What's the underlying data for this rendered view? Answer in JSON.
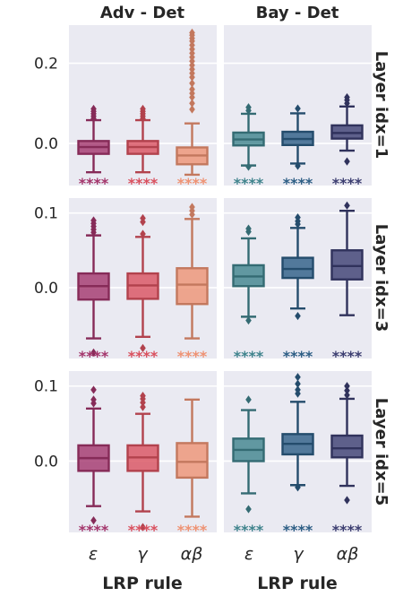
{
  "chart_data": {
    "type": "box",
    "col_titles": [
      "Adv - Det",
      "Bay - Det"
    ],
    "row_titles": [
      "Layer idx=1",
      "Layer idx=3",
      "Layer idx=5"
    ],
    "xlabel": "LRP rule",
    "categories": [
      "ε",
      "γ",
      "αβ"
    ],
    "significance_label": "****",
    "grid": true,
    "background": "#eaeaf2",
    "colors": {
      "Adv - Det": [
        "#a3356b",
        "#d9505e",
        "#ee9273"
      ],
      "Bay - Det": [
        "#3f838c",
        "#2c5d84",
        "#3b3d70"
      ]
    },
    "rows": [
      {
        "ylim": [
          -0.105,
          0.295
        ],
        "yticks": [
          0.0,
          0.2
        ],
        "ytick_labels": [
          "0.0",
          "0.2"
        ],
        "panels": [
          {
            "boxes": [
              {
                "q1": -0.026,
                "median": -0.009,
                "q3": 0.006,
                "whislo": -0.072,
                "whishi": 0.058,
                "fliers": [
                  0.062,
                  0.068,
                  0.074,
                  0.08,
                  0.086
                ]
              },
              {
                "q1": -0.026,
                "median": -0.009,
                "q3": 0.006,
                "whislo": -0.072,
                "whishi": 0.058,
                "fliers": [
                  0.062,
                  0.068,
                  0.074,
                  0.08,
                  0.086
                ]
              },
              {
                "q1": -0.052,
                "median": -0.03,
                "q3": -0.01,
                "whislo": -0.078,
                "whishi": 0.05,
                "fliers": [
                  0.085,
                  0.1,
                  0.115,
                  0.125,
                  0.135,
                  0.15,
                  0.165,
                  0.175,
                  0.185,
                  0.195,
                  0.205,
                  0.215,
                  0.225,
                  0.235,
                  0.245,
                  0.255,
                  0.262,
                  0.27,
                  0.276
                ]
              }
            ]
          },
          {
            "boxes": [
              {
                "q1": -0.005,
                "median": 0.01,
                "q3": 0.027,
                "whislo": -0.055,
                "whishi": 0.074,
                "fliers": [
                  0.082,
                  0.09,
                  -0.058
                ]
              },
              {
                "q1": -0.004,
                "median": 0.011,
                "q3": 0.029,
                "whislo": -0.05,
                "whishi": 0.075,
                "fliers": [
                  0.087,
                  -0.056
                ]
              },
              {
                "q1": 0.012,
                "median": 0.026,
                "q3": 0.045,
                "whislo": -0.018,
                "whishi": 0.092,
                "fliers": [
                  0.1,
                  0.108,
                  0.115,
                  -0.045
                ]
              }
            ]
          }
        ]
      },
      {
        "ylim": [
          -0.095,
          0.12
        ],
        "yticks": [
          0.0,
          0.1
        ],
        "ytick_labels": [
          "0.0",
          "0.1"
        ],
        "panels": [
          {
            "boxes": [
              {
                "q1": -0.016,
                "median": 0.002,
                "q3": 0.019,
                "whislo": -0.068,
                "whishi": 0.07,
                "fliers": [
                  0.074,
                  0.078,
                  0.082,
                  0.086,
                  0.09,
                  -0.087
                ]
              },
              {
                "q1": -0.015,
                "median": 0.003,
                "q3": 0.019,
                "whislo": -0.066,
                "whishi": 0.068,
                "fliers": [
                  0.072,
                  0.088,
                  0.093,
                  -0.081
                ]
              },
              {
                "q1": -0.022,
                "median": 0.004,
                "q3": 0.026,
                "whislo": -0.068,
                "whishi": 0.092,
                "fliers": [
                  0.098,
                  0.103,
                  0.108
                ]
              }
            ]
          },
          {
            "boxes": [
              {
                "q1": 0.002,
                "median": 0.015,
                "q3": 0.03,
                "whislo": -0.039,
                "whishi": 0.066,
                "fliers": [
                  0.075,
                  0.079,
                  -0.044
                ]
              },
              {
                "q1": 0.013,
                "median": 0.025,
                "q3": 0.04,
                "whislo": -0.028,
                "whishi": 0.08,
                "fliers": [
                  0.085,
                  0.089,
                  0.094,
                  -0.038
                ]
              },
              {
                "q1": 0.011,
                "median": 0.029,
                "q3": 0.05,
                "whislo": -0.037,
                "whishi": 0.103,
                "fliers": [
                  0.11
                ]
              }
            ]
          }
        ]
      },
      {
        "ylim": [
          -0.095,
          0.12
        ],
        "yticks": [
          0.0,
          0.1
        ],
        "ytick_labels": [
          "0.0",
          "0.1"
        ],
        "panels": [
          {
            "boxes": [
              {
                "q1": -0.013,
                "median": 0.004,
                "q3": 0.021,
                "whislo": -0.06,
                "whishi": 0.07,
                "fliers": [
                  0.077,
                  0.082,
                  0.095,
                  -0.079
                ]
              },
              {
                "q1": -0.013,
                "median": 0.005,
                "q3": 0.021,
                "whislo": -0.067,
                "whishi": 0.063,
                "fliers": [
                  0.072,
                  0.078,
                  0.083,
                  0.087,
                  -0.088
                ]
              },
              {
                "q1": -0.022,
                "median": -0.001,
                "q3": 0.024,
                "whislo": -0.074,
                "whishi": 0.082,
                "fliers": []
              }
            ]
          },
          {
            "boxes": [
              {
                "q1": 0.0,
                "median": 0.015,
                "q3": 0.03,
                "whislo": -0.043,
                "whishi": 0.068,
                "fliers": [
                  0.082,
                  -0.064
                ]
              },
              {
                "q1": 0.009,
                "median": 0.023,
                "q3": 0.036,
                "whislo": -0.032,
                "whishi": 0.079,
                "fliers": [
                  0.09,
                  0.095,
                  0.103,
                  0.112,
                  -0.035
                ]
              },
              {
                "q1": 0.005,
                "median": 0.017,
                "q3": 0.034,
                "whislo": -0.033,
                "whishi": 0.083,
                "fliers": [
                  0.088,
                  0.094,
                  0.1,
                  -0.052
                ]
              }
            ]
          }
        ]
      }
    ]
  }
}
